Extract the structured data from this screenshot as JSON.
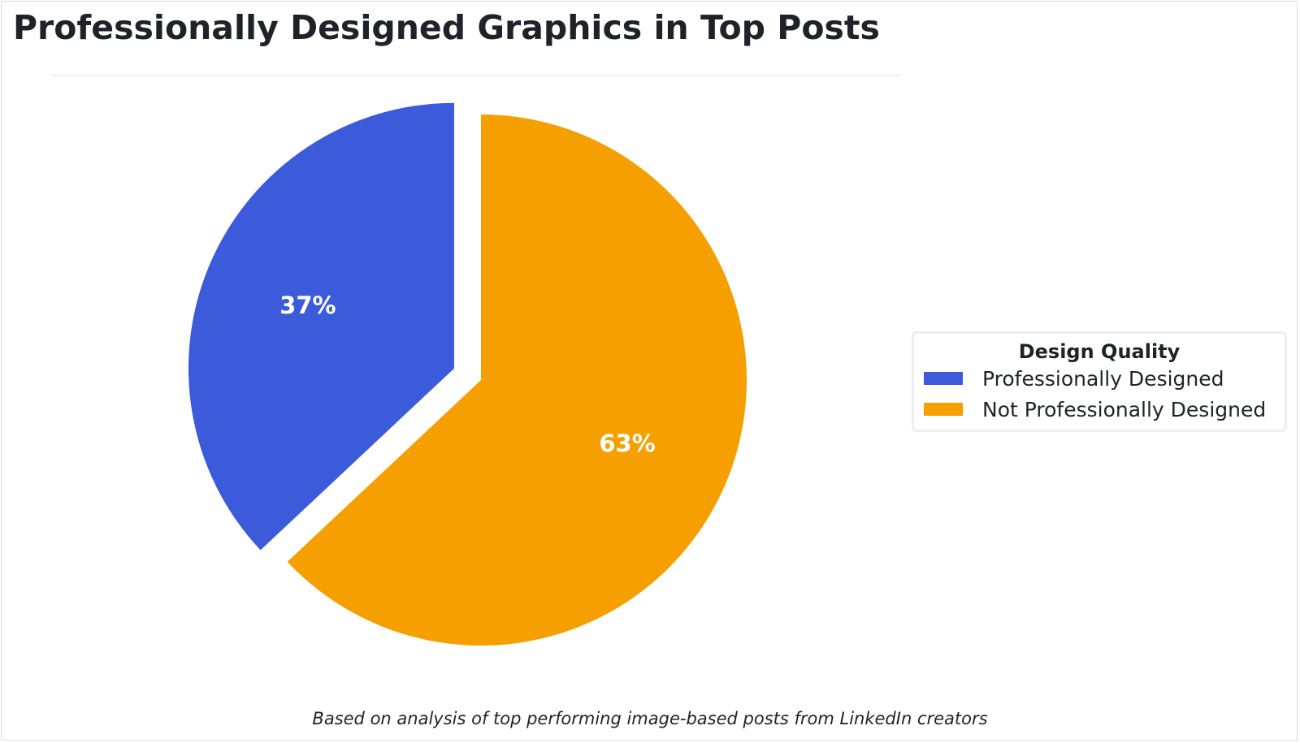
{
  "chart_data": {
    "type": "pie",
    "title": "Professionally Designed Graphics in Top Posts",
    "categories": [
      "Professionally Designed",
      "Not Professionally Designed"
    ],
    "values": [
      37,
      63
    ],
    "labels": [
      "37%",
      "63%"
    ],
    "colors": [
      "#3B5BDB",
      "#F59F00"
    ],
    "exploded": [
      true,
      false
    ],
    "legend": {
      "title": "Design Quality",
      "placement": "right"
    },
    "footnote": "Based on analysis of top performing image-based posts from LinkedIn creators"
  }
}
